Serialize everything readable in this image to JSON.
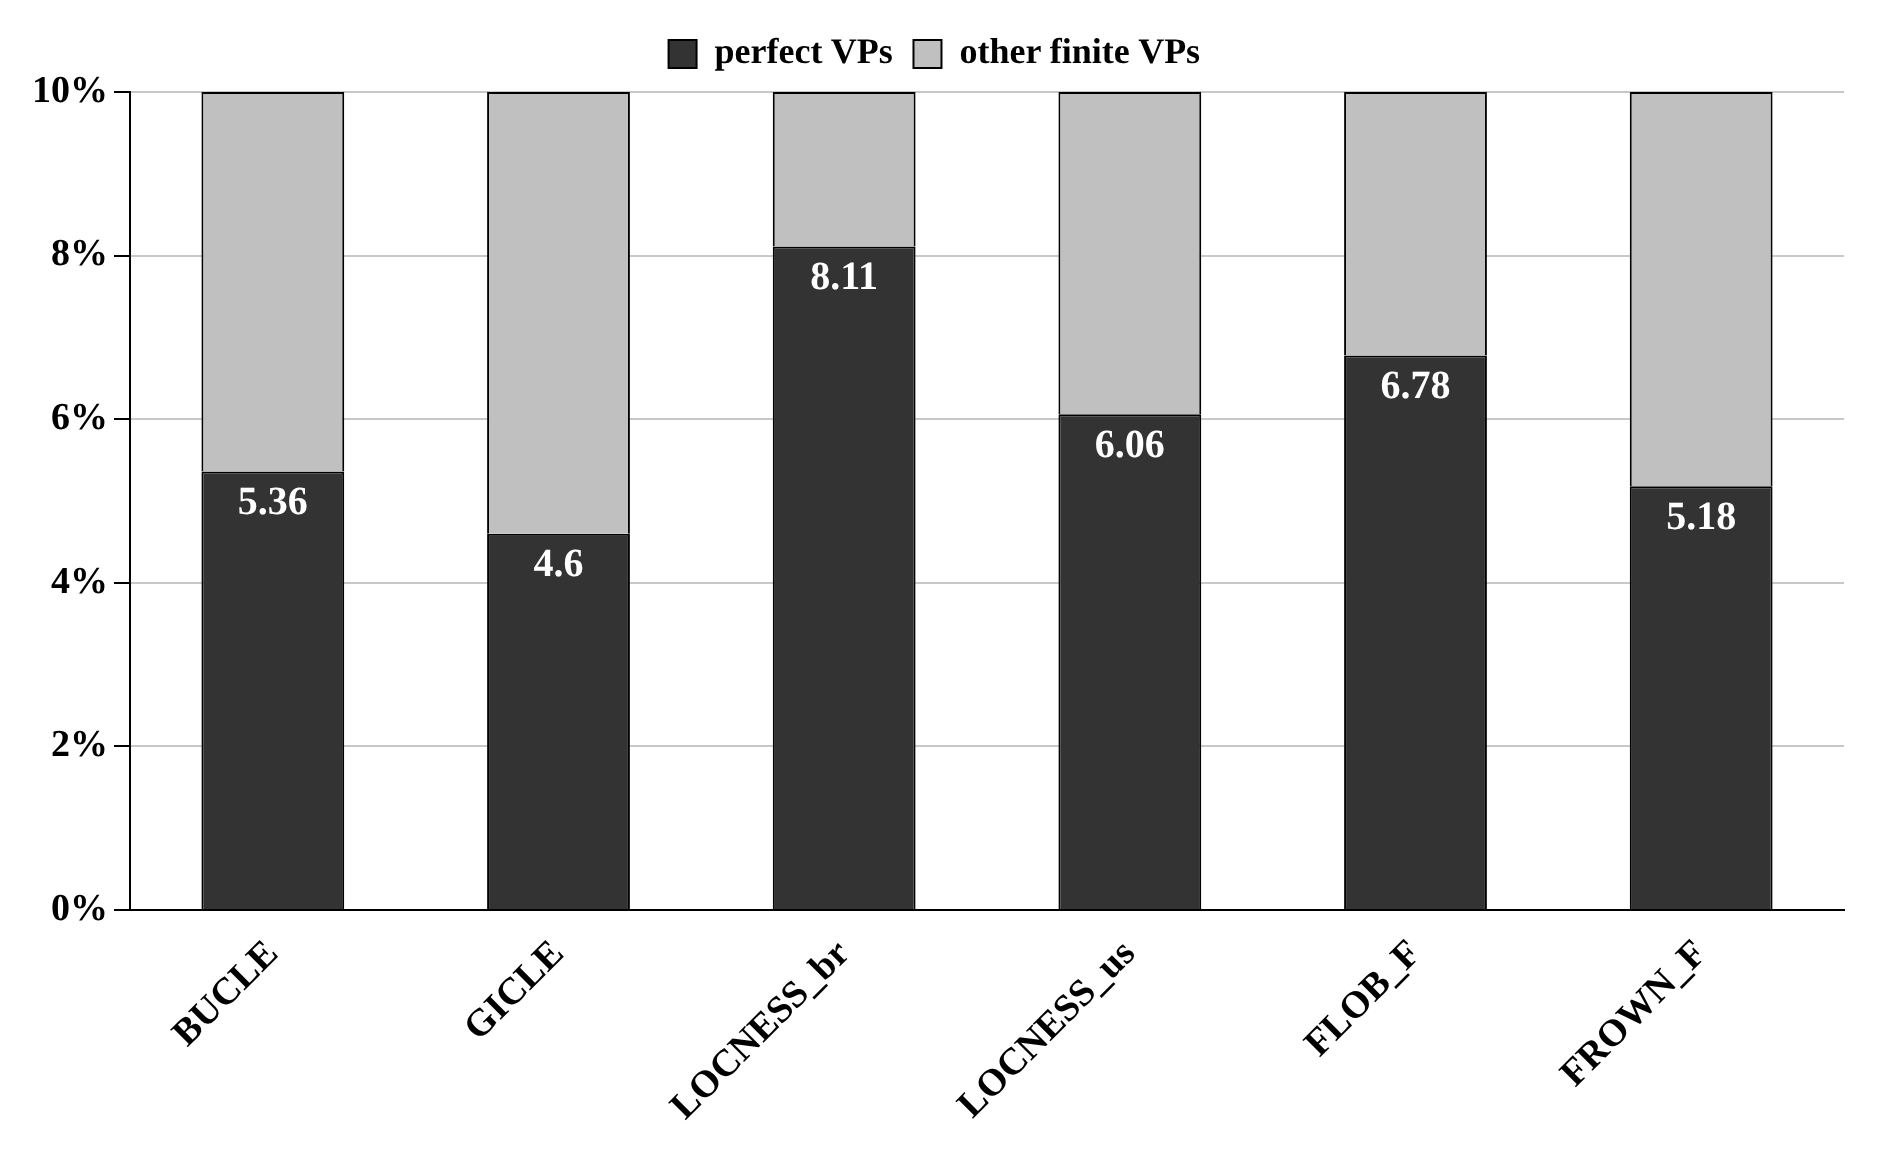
{
  "chart_data": {
    "type": "bar",
    "stacked": true,
    "categories": [
      "BUCLE",
      "GICLE",
      "LOCNESS_br",
      "LOCNESS_us",
      "FLOB_F",
      "FROWN_F"
    ],
    "series": [
      {
        "name": "perfect VPs",
        "color": "#333333",
        "values": [
          5.36,
          4.6,
          8.11,
          6.06,
          6.78,
          5.18
        ],
        "value_labels": [
          "5.36",
          "4.6",
          "8.11",
          "6.06",
          "6.78",
          "5.18"
        ]
      },
      {
        "name": "other finite VPs",
        "color": "#c0c0c0",
        "values": [
          4.64,
          5.4,
          1.89,
          3.94,
          3.22,
          4.82
        ]
      }
    ],
    "ylim": [
      0,
      10
    ],
    "yticks": [
      {
        "value": 0,
        "label": "0%"
      },
      {
        "value": 2,
        "label": "2%"
      },
      {
        "value": 4,
        "label": "4%"
      },
      {
        "value": 6,
        "label": "6%"
      },
      {
        "value": 8,
        "label": "8%"
      },
      {
        "value": 10,
        "label": "10%"
      }
    ],
    "grid": "y",
    "legend": "top"
  }
}
